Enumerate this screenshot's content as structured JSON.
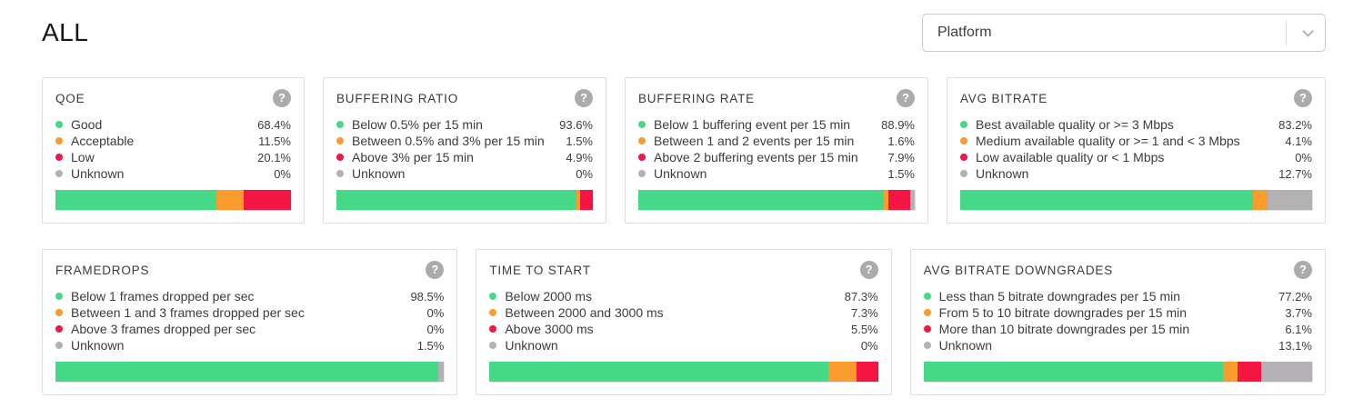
{
  "page": {
    "title": "ALL"
  },
  "filter": {
    "label": "Platform"
  },
  "help_icon": {
    "glyph": "?"
  },
  "colors": {
    "good": "#45d987",
    "warn": "#fa9b2d",
    "bad": "#f41543",
    "unknown": "#b3b1b3",
    "icon_gray": "#ababab"
  },
  "cards": [
    {
      "title": "QOE",
      "legend": [
        {
          "label": "Good",
          "value": "68.4%",
          "pct": 68.4
        },
        {
          "label": "Acceptable",
          "value": "11.5%",
          "pct": 11.5
        },
        {
          "label": "Low",
          "value": "20.1%",
          "pct": 20.1
        },
        {
          "label": "Unknown",
          "value": "0%",
          "pct": 0
        }
      ]
    },
    {
      "title": "BUFFERING RATIO",
      "legend": [
        {
          "label": "Below 0.5% per 15 min",
          "value": "93.6%",
          "pct": 93.6
        },
        {
          "label": "Between 0.5% and 3% per 15 min",
          "value": "1.5%",
          "pct": 1.5
        },
        {
          "label": "Above 3% per 15 min",
          "value": "4.9%",
          "pct": 4.9
        },
        {
          "label": "Unknown",
          "value": "0%",
          "pct": 0
        }
      ]
    },
    {
      "title": "BUFFERING RATE",
      "legend": [
        {
          "label": "Below 1 buffering event per 15 min",
          "value": "88.9%",
          "pct": 88.9
        },
        {
          "label": "Between 1 and 2 events per 15 min",
          "value": "1.6%",
          "pct": 1.6
        },
        {
          "label": "Above 2 buffering events per 15 min",
          "value": "7.9%",
          "pct": 7.9
        },
        {
          "label": "Unknown",
          "value": "1.5%",
          "pct": 1.5
        }
      ]
    },
    {
      "title": "AVG BITRATE",
      "legend": [
        {
          "label": "Best available quality or >= 3 Mbps",
          "value": "83.2%",
          "pct": 83.2
        },
        {
          "label": "Medium available quality or >= 1 and < 3 Mbps",
          "value": "4.1%",
          "pct": 4.1
        },
        {
          "label": "Low available quality or < 1 Mbps",
          "value": "0%",
          "pct": 0
        },
        {
          "label": "Unknown",
          "value": "12.7%",
          "pct": 12.7
        }
      ]
    },
    {
      "title": "FRAMEDROPS",
      "legend": [
        {
          "label": "Below 1 frames dropped per sec",
          "value": "98.5%",
          "pct": 98.5
        },
        {
          "label": "Between 1 and 3 frames dropped per sec",
          "value": "0%",
          "pct": 0
        },
        {
          "label": "Above 3 frames dropped per sec",
          "value": "0%",
          "pct": 0
        },
        {
          "label": "Unknown",
          "value": "1.5%",
          "pct": 1.5
        }
      ]
    },
    {
      "title": "TIME TO START",
      "legend": [
        {
          "label": "Below 2000 ms",
          "value": "87.3%",
          "pct": 87.3
        },
        {
          "label": "Between 2000 and 3000 ms",
          "value": "7.3%",
          "pct": 7.3
        },
        {
          "label": "Above 3000 ms",
          "value": "5.5%",
          "pct": 5.5
        },
        {
          "label": "Unknown",
          "value": "0%",
          "pct": 0
        }
      ]
    },
    {
      "title": "AVG BITRATE DOWNGRADES",
      "legend": [
        {
          "label": "Less than 5 bitrate downgrades per 15 min",
          "value": "77.2%",
          "pct": 77.2
        },
        {
          "label": "From 5 to 10 bitrate downgrades per 15 min",
          "value": "3.7%",
          "pct": 3.7
        },
        {
          "label": "More than 10 bitrate downgrades per 15 min",
          "value": "6.1%",
          "pct": 6.1
        },
        {
          "label": "Unknown",
          "value": "13.1%",
          "pct": 13.1
        }
      ]
    }
  ]
}
